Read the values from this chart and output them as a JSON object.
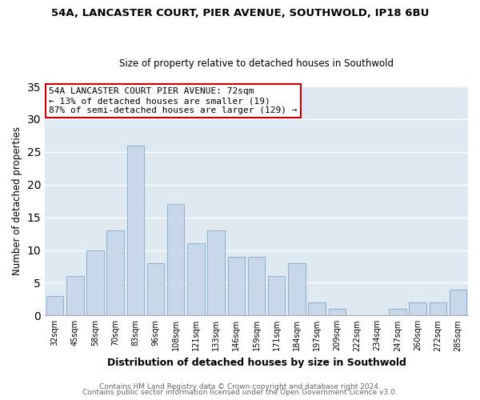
{
  "title_line1": "54A, LANCASTER COURT, PIER AVENUE, SOUTHWOLD, IP18 6BU",
  "title_line2": "Size of property relative to detached houses in Southwold",
  "xlabel": "Distribution of detached houses by size in Southwold",
  "ylabel": "Number of detached properties",
  "categories": [
    "32sqm",
    "45sqm",
    "58sqm",
    "70sqm",
    "83sqm",
    "96sqm",
    "108sqm",
    "121sqm",
    "133sqm",
    "146sqm",
    "159sqm",
    "171sqm",
    "184sqm",
    "197sqm",
    "209sqm",
    "222sqm",
    "234sqm",
    "247sqm",
    "260sqm",
    "272sqm",
    "285sqm"
  ],
  "values": [
    3,
    6,
    10,
    13,
    26,
    8,
    17,
    11,
    13,
    9,
    9,
    6,
    8,
    2,
    1,
    0,
    0,
    1,
    2,
    2,
    4
  ],
  "bar_color": "#c8d8ea",
  "bar_edge_color": "#8ab0cc",
  "ylim": [
    0,
    35
  ],
  "yticks": [
    0,
    5,
    10,
    15,
    20,
    25,
    30,
    35
  ],
  "annotation_text": "54A LANCASTER COURT PIER AVENUE: 72sqm\n← 13% of detached houses are smaller (19)\n87% of semi-detached houses are larger (129) →",
  "annotation_box_facecolor": "#ffffff",
  "annotation_box_edgecolor": "#cc0000",
  "footer_line1": "Contains HM Land Registry data © Crown copyright and database right 2024.",
  "footer_line2": "Contains public sector information licensed under the Open Government Licence v3.0.",
  "background_color": "#ffffff",
  "axes_facecolor": "#dde8f0",
  "grid_color": "#ffffff",
  "title1_fontsize": 9.5,
  "title2_fontsize": 8.5,
  "ylabel_fontsize": 8.5,
  "xlabel_fontsize": 9,
  "tick_fontsize": 7,
  "ann_fontsize": 8,
  "footer_fontsize": 6.5
}
